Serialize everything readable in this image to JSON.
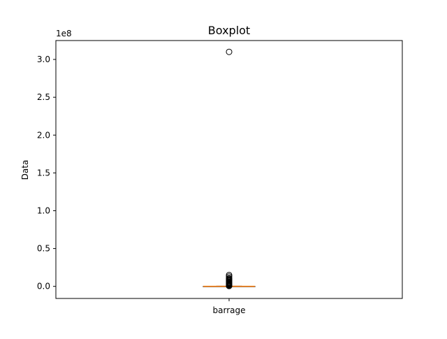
{
  "chart_data": {
    "type": "boxplot",
    "title": "Boxplot",
    "xlabel": "",
    "ylabel": "Data",
    "y_offset_label": "1e8",
    "categories": [
      "barrage"
    ],
    "ylim": [
      -0.16,
      3.25
    ],
    "yticks": [
      0.0,
      0.5,
      1.0,
      1.5,
      2.0,
      2.5,
      3.0
    ],
    "ytick_labels": [
      "0.0",
      "0.5",
      "1.0",
      "1.5",
      "2.0",
      "2.5",
      "3.0"
    ],
    "grid": false,
    "legend": "none",
    "boxes": [
      {
        "category": "barrage",
        "whisker_low": 0.0,
        "q1": 0.0,
        "median": 0.0,
        "q3": 0.0,
        "whisker_high": 0.003,
        "outliers": [
          3.1,
          0.15,
          0.13,
          0.11,
          0.1,
          0.09,
          0.08,
          0.07,
          0.06,
          0.05,
          0.045,
          0.04,
          0.035,
          0.03,
          0.025,
          0.02,
          0.015,
          0.01,
          0.007,
          0.005
        ]
      }
    ],
    "colors": {
      "box": "#000000",
      "median": "#ff7f0e",
      "outlier": "#000000"
    }
  }
}
